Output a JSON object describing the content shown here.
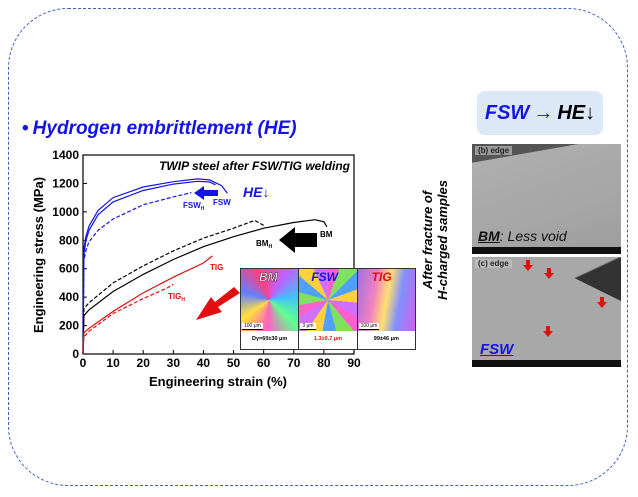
{
  "title": "Hydrogen embrittlement (HE)",
  "badge": {
    "left": "FSW",
    "arrow": "→",
    "right": "HE↓"
  },
  "side_label": [
    "After fracture of",
    "H-charged samples"
  ],
  "sem_panels": [
    {
      "label": "(b) edge",
      "caption_bold": "BM",
      "caption_rest": ": Less void"
    },
    {
      "label": "(c) edge",
      "caption": "FSW"
    }
  ],
  "inset": {
    "panels": [
      {
        "title": "BM",
        "scale": "100 μm",
        "size": "Dγ=60±30 μm",
        "color": "#ffffff"
      },
      {
        "title": "FSW",
        "scale": "3 μm",
        "size": "1.3±0.7 μm",
        "color": "#1414e6"
      },
      {
        "title": "TIG",
        "scale": "100 μm",
        "size": "99±46 μm",
        "color": "#e01010"
      }
    ]
  },
  "chart_data": {
    "type": "line",
    "title": "TWIP steel after FSW/TIG welding",
    "xlabel": "Engineering strain (%)",
    "ylabel": "Engineering stress (MPa)",
    "xlim": [
      0,
      90
    ],
    "ylim": [
      0,
      1400
    ],
    "xticks": [
      0,
      10,
      20,
      30,
      40,
      50,
      60,
      70,
      80,
      90
    ],
    "yticks": [
      0,
      200,
      400,
      600,
      800,
      1000,
      1200,
      1400
    ],
    "annotations": {
      "he": "HE↓",
      "fsw": "FSW",
      "fswh": "FSW",
      "bm": "BM",
      "bmh": "BM",
      "tig": "TIG",
      "tigh": "TIG",
      "sub": "H"
    },
    "series": [
      {
        "name": "FSW",
        "color": "#1414e6",
        "dash": false,
        "x": [
          0,
          0.3,
          1,
          2,
          5,
          10,
          20,
          30,
          38,
          42,
          46,
          48
        ],
        "y": [
          0,
          740,
          830,
          900,
          1010,
          1100,
          1175,
          1212,
          1232,
          1225,
          1185,
          1130
        ]
      },
      {
        "name": "FSW",
        "color": "#1414e6",
        "dash": false,
        "x": [
          0,
          0.3,
          1,
          2,
          5,
          10,
          20,
          30,
          38,
          42,
          44
        ],
        "y": [
          0,
          700,
          800,
          870,
          980,
          1070,
          1150,
          1195,
          1215,
          1210,
          1190
        ]
      },
      {
        "name": "FSW_H",
        "color": "#1414e6",
        "dash": true,
        "x": [
          0,
          0.3,
          1,
          2,
          5,
          10,
          20,
          30,
          36
        ],
        "y": [
          0,
          660,
          730,
          790,
          870,
          950,
          1050,
          1105,
          1135
        ]
      },
      {
        "name": "BM",
        "color": "#000000",
        "dash": false,
        "x": [
          0,
          0.3,
          2,
          10,
          20,
          30,
          40,
          50,
          60,
          70,
          77,
          80,
          81
        ],
        "y": [
          0,
          270,
          310,
          440,
          560,
          665,
          755,
          825,
          885,
          925,
          945,
          930,
          895
        ]
      },
      {
        "name": "BM_H",
        "color": "#000000",
        "dash": true,
        "x": [
          0,
          0.3,
          2,
          10,
          20,
          30,
          40,
          50,
          57,
          60
        ],
        "y": [
          0,
          320,
          360,
          500,
          620,
          725,
          815,
          885,
          940,
          905
        ]
      },
      {
        "name": "TIG",
        "color": "#e01010",
        "dash": false,
        "x": [
          0,
          0.3,
          2,
          10,
          20,
          30,
          40,
          43
        ],
        "y": [
          0,
          150,
          180,
          300,
          430,
          540,
          640,
          690
        ]
      },
      {
        "name": "TIG_H",
        "color": "#e01010",
        "dash": true,
        "x": [
          0,
          0.3,
          2,
          10,
          20,
          28,
          30
        ],
        "y": [
          0,
          120,
          160,
          285,
          390,
          465,
          490
        ]
      }
    ]
  }
}
